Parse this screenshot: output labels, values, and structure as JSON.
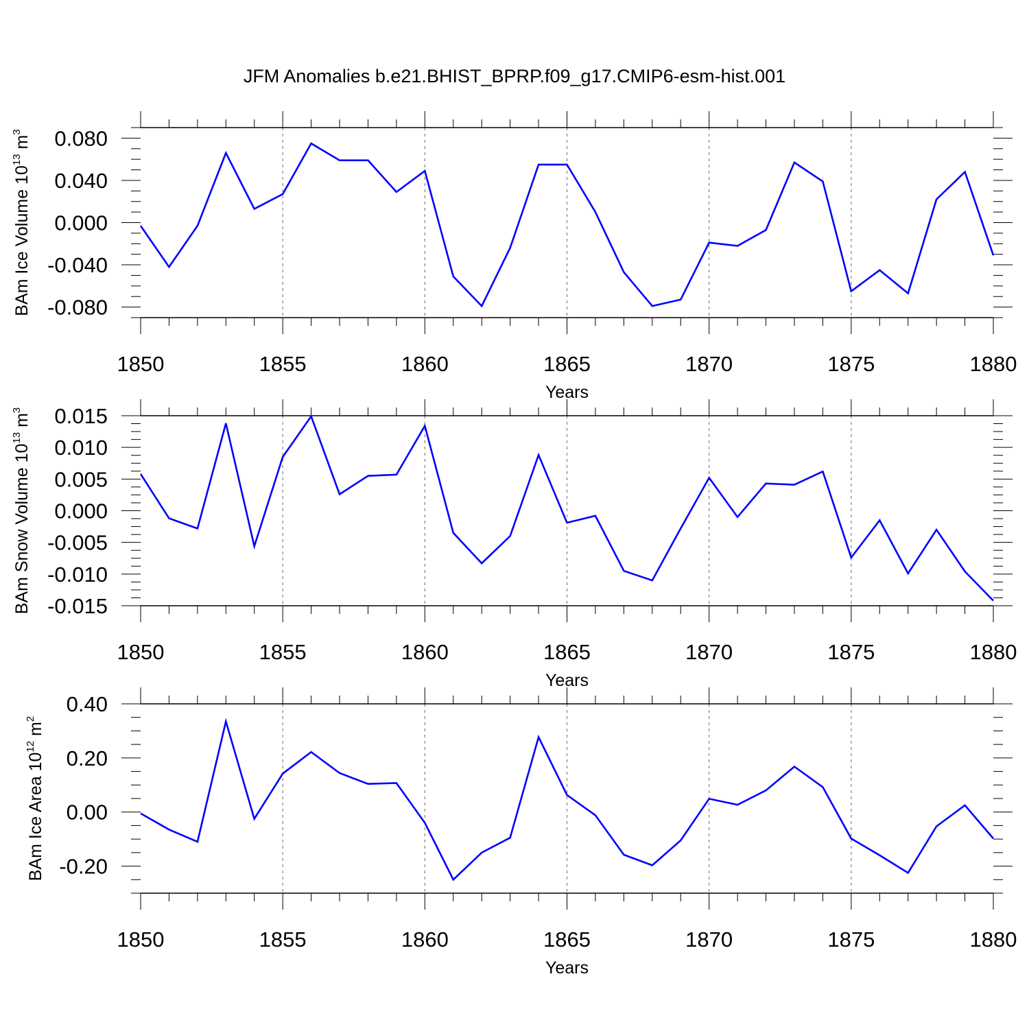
{
  "title": "JFM Anomalies b.e21.BHIST_BPRP.f09_g17.CMIP6-esm-hist.001",
  "colors": {
    "line": "#0000ff",
    "axis": "#000000",
    "grid": "#808080"
  },
  "chart_data": [
    {
      "type": "line",
      "xlabel": "Years",
      "ylabel": {
        "text": "BAm Ice Volume 10",
        "exp": "13",
        "unit": " m",
        "unit_exp": "3"
      },
      "xlim": [
        1850,
        1880
      ],
      "ylim": [
        -0.09,
        0.09
      ],
      "yticks": [
        -0.08,
        -0.04,
        0.0,
        0.04,
        0.08
      ],
      "ytick_labels": [
        "-0.080",
        "-0.040",
        "0.000",
        "0.040",
        "0.080"
      ],
      "xticks": [
        1850,
        1855,
        1860,
        1865,
        1870,
        1875,
        1880
      ],
      "xtick_labels": [
        "1850",
        "1855",
        "1860",
        "1865",
        "1870",
        "1875",
        "1880"
      ],
      "grid_x": [
        1855,
        1860,
        1865,
        1870,
        1875
      ],
      "x": [
        1850,
        1851,
        1852,
        1853,
        1854,
        1855,
        1856,
        1857,
        1858,
        1859,
        1860,
        1861,
        1862,
        1863,
        1864,
        1865,
        1866,
        1867,
        1868,
        1869,
        1870,
        1871,
        1872,
        1873,
        1874,
        1875,
        1876,
        1877,
        1878,
        1879,
        1880
      ],
      "values": [
        -0.003,
        -0.042,
        -0.003,
        0.066,
        0.013,
        0.027,
        0.075,
        0.059,
        0.059,
        0.029,
        0.049,
        -0.051,
        -0.079,
        -0.024,
        0.055,
        0.055,
        0.01,
        -0.047,
        -0.079,
        -0.073,
        -0.019,
        -0.022,
        -0.007,
        0.057,
        0.039,
        -0.065,
        -0.045,
        -0.067,
        0.022,
        0.048,
        -0.031
      ]
    },
    {
      "type": "line",
      "xlabel": "Years",
      "ylabel": {
        "text": "BAm Snow Volume 10",
        "exp": "13",
        "unit": " m",
        "unit_exp": "3"
      },
      "xlim": [
        1850,
        1880
      ],
      "ylim": [
        -0.015,
        0.015
      ],
      "yticks": [
        -0.015,
        -0.01,
        -0.005,
        0.0,
        0.005,
        0.01,
        0.015
      ],
      "ytick_labels": [
        "-0.015",
        "-0.010",
        "-0.005",
        "0.000",
        "0.005",
        "0.010",
        "0.015"
      ],
      "xticks": [
        1850,
        1855,
        1860,
        1865,
        1870,
        1875,
        1880
      ],
      "xtick_labels": [
        "1850",
        "1855",
        "1860",
        "1865",
        "1870",
        "1875",
        "1880"
      ],
      "grid_x": [
        1855,
        1860,
        1865,
        1870,
        1875
      ],
      "x": [
        1850,
        1851,
        1852,
        1853,
        1854,
        1855,
        1856,
        1857,
        1858,
        1859,
        1860,
        1861,
        1862,
        1863,
        1864,
        1865,
        1866,
        1867,
        1868,
        1869,
        1870,
        1871,
        1872,
        1873,
        1874,
        1875,
        1876,
        1877,
        1878,
        1879,
        1880
      ],
      "values": [
        0.0058,
        -0.0012,
        -0.0028,
        0.0138,
        -0.0056,
        0.0085,
        0.0149,
        0.0026,
        0.0055,
        0.0057,
        0.0134,
        -0.0035,
        -0.0083,
        -0.004,
        0.0088,
        -0.0019,
        -0.0008,
        -0.0095,
        -0.011,
        -0.0028,
        0.0052,
        -0.001,
        0.0043,
        0.0041,
        0.0062,
        -0.0074,
        -0.0015,
        -0.0099,
        -0.003,
        -0.0096,
        -0.0142
      ]
    },
    {
      "type": "line",
      "xlabel": "Years",
      "ylabel": {
        "text": "BAm Ice Area 10",
        "exp": "12",
        "unit": " m",
        "unit_exp": "2"
      },
      "xlim": [
        1850,
        1880
      ],
      "ylim": [
        -0.3,
        0.4
      ],
      "yticks": [
        -0.2,
        0.0,
        0.2,
        0.4
      ],
      "ytick_labels": [
        "-0.20",
        "0.00",
        "0.20",
        "0.40"
      ],
      "xticks": [
        1850,
        1855,
        1860,
        1865,
        1870,
        1875,
        1880
      ],
      "xtick_labels": [
        "1850",
        "1855",
        "1860",
        "1865",
        "1870",
        "1875",
        "1880"
      ],
      "grid_x": [
        1855,
        1860,
        1865,
        1870,
        1875
      ],
      "x": [
        1850,
        1851,
        1852,
        1853,
        1854,
        1855,
        1856,
        1857,
        1858,
        1859,
        1860,
        1861,
        1862,
        1863,
        1864,
        1865,
        1866,
        1867,
        1868,
        1869,
        1870,
        1871,
        1872,
        1873,
        1874,
        1875,
        1876,
        1877,
        1878,
        1879,
        1880
      ],
      "values": [
        -0.005,
        -0.065,
        -0.11,
        0.335,
        -0.025,
        0.142,
        0.222,
        0.144,
        0.104,
        0.107,
        -0.04,
        -0.25,
        -0.15,
        -0.095,
        0.277,
        0.063,
        -0.012,
        -0.158,
        -0.197,
        -0.105,
        0.049,
        0.027,
        0.08,
        0.168,
        0.092,
        -0.098,
        -0.16,
        -0.225,
        -0.053,
        0.025,
        -0.098
      ]
    }
  ]
}
